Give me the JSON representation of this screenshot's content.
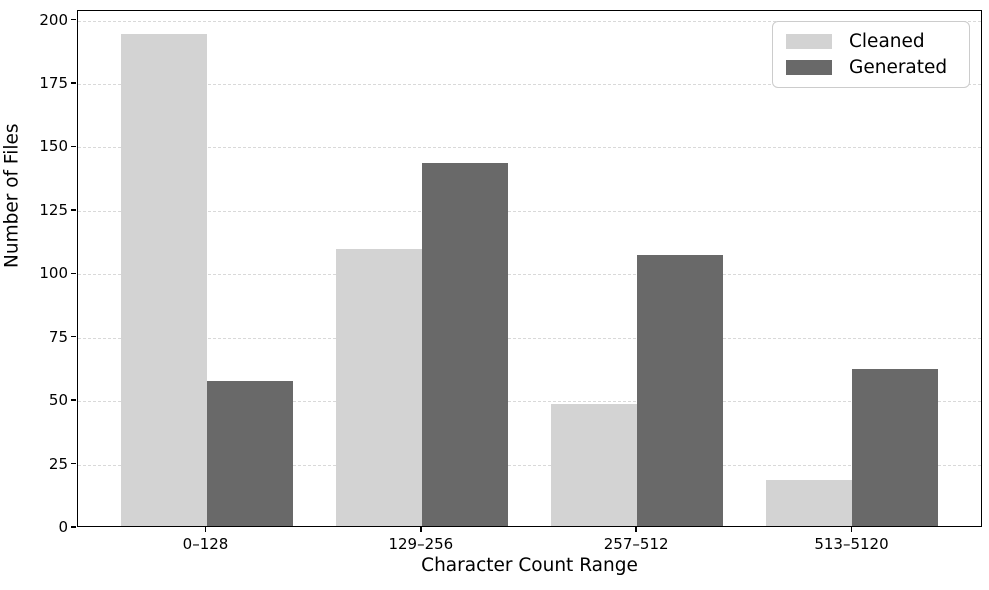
{
  "chart_data": {
    "type": "bar",
    "title": "",
    "categories": [
      "0–128",
      "129–256",
      "257–512",
      "513–5120"
    ],
    "series": [
      {
        "name": "Cleaned",
        "color": "#d3d3d3",
        "values": [
          194,
          109,
          48,
          18
        ]
      },
      {
        "name": "Generated",
        "color": "#696969",
        "values": [
          57,
          143,
          107,
          62
        ]
      }
    ],
    "xlabel": "Character Count Range",
    "ylabel": "Number of Files",
    "ylim": [
      0,
      200
    ],
    "yticks": [
      0,
      25,
      50,
      75,
      100,
      125,
      150,
      175,
      200
    ],
    "grid": "horizontal-dashed",
    "grid_color": "#d9d9d9",
    "legend_position": "upper-right",
    "background_color": "#ffffff",
    "spine_color": "#000000"
  }
}
